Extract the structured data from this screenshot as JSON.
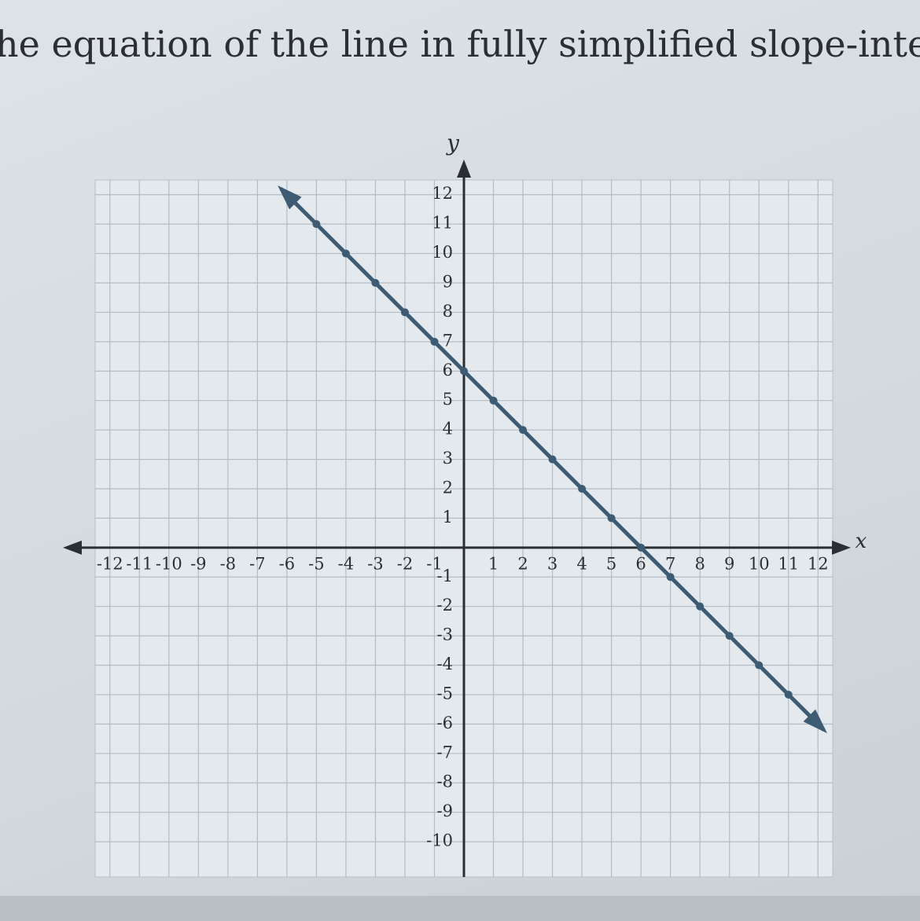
{
  "chart_data": {
    "type": "line",
    "title": "he equation of the line in fully simplified slope-intercep",
    "x_label": "x",
    "y_label": "y",
    "x": [
      -5,
      -4,
      -3,
      -2,
      -1,
      0,
      1,
      2,
      3,
      4,
      5,
      6,
      7,
      8,
      9,
      10,
      11
    ],
    "values": [
      11,
      10,
      9,
      8,
      7,
      6,
      5,
      4,
      3,
      2,
      1,
      0,
      -1,
      -2,
      -3,
      -4,
      -5
    ],
    "color": "#3e5b74",
    "xlim": [
      -12.5,
      12.5
    ],
    "ylim": [
      -11.2,
      12.5
    ],
    "xticks": [
      -12,
      -11,
      -10,
      -9,
      -8,
      -7,
      -6,
      -5,
      -4,
      -3,
      -2,
      -1,
      1,
      2,
      3,
      4,
      5,
      6,
      7,
      8,
      9,
      10,
      11,
      12
    ],
    "yticks": [
      -10,
      -9,
      -8,
      -7,
      -6,
      -5,
      -4,
      -3,
      -2,
      -1,
      1,
      2,
      3,
      4,
      5,
      6,
      7,
      8,
      9,
      10,
      11,
      12
    ],
    "grid": true
  }
}
